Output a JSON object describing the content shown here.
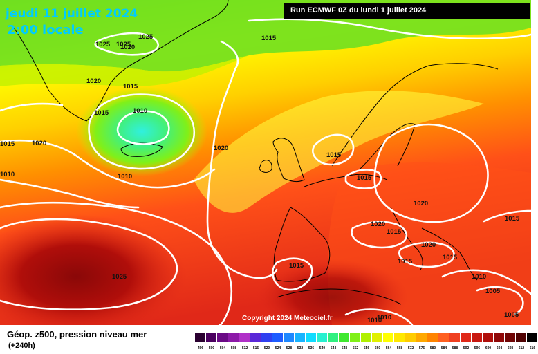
{
  "header": {
    "date": "jeudi 11 juillet 2024",
    "local_time": "2:00 locale",
    "run_info": "Run ECMWF 0Z du lundi 1 juillet 2024"
  },
  "copyright": "Copyright 2024 Meteociel.fr",
  "footer": {
    "product": "Géop. z500, pression niveau mer",
    "lead_time": "(+240h)"
  },
  "legend": {
    "ticks": [
      "496",
      "500",
      "504",
      "508",
      "512",
      "516",
      "520",
      "524",
      "528",
      "532",
      "536",
      "540",
      "544",
      "548",
      "552",
      "556",
      "560",
      "564",
      "568",
      "572",
      "576",
      "580",
      "584",
      "588",
      "592",
      "596",
      "600",
      "604",
      "608",
      "612",
      "616"
    ],
    "colors": [
      "#2a0030",
      "#4b0060",
      "#6a0a85",
      "#8c1aa8",
      "#b030c8",
      "#5a28d8",
      "#3040f0",
      "#1e5cff",
      "#1e88ff",
      "#18b4ff",
      "#10dcff",
      "#28f0d0",
      "#30f080",
      "#40e830",
      "#80f018",
      "#b0f000",
      "#e0f000",
      "#ffff00",
      "#ffe800",
      "#ffcc00",
      "#ffa800",
      "#ff8400",
      "#ff6020",
      "#f04020",
      "#e02818",
      "#c81810",
      "#b00e0a",
      "#900808",
      "#700505",
      "#500303",
      "#000000"
    ]
  },
  "isobar_labels": [
    "1025",
    "1025",
    "1025",
    "1020",
    "1015",
    "1020",
    "1015",
    "1010",
    "1015",
    "1020",
    "1010",
    "1010",
    "1015",
    "1020",
    "1015",
    "1020",
    "1020",
    "1015",
    "1015",
    "1020",
    "1015",
    "1025",
    "1015",
    "1015",
    "1010",
    "1010",
    "1005",
    "1015",
    "1005",
    "1010"
  ]
}
